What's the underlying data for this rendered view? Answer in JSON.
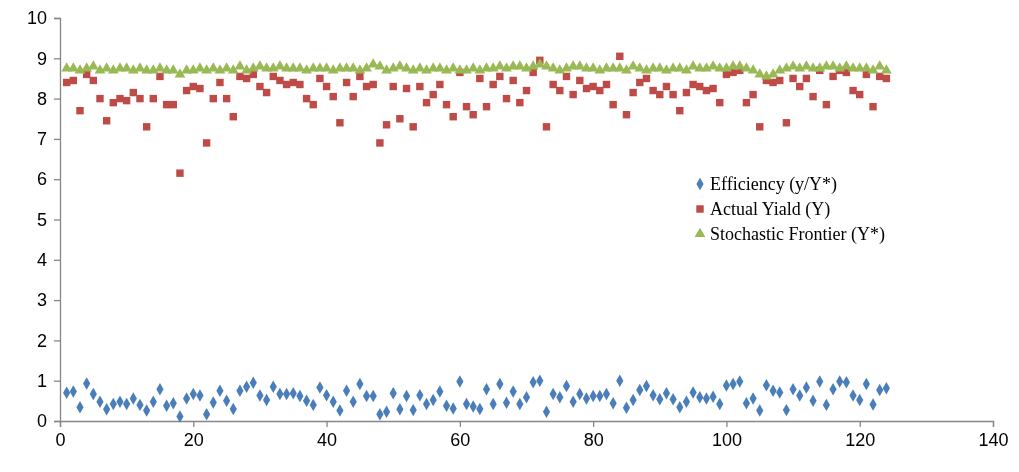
{
  "chart_data": {
    "type": "scatter",
    "x": [
      1,
      2,
      3,
      4,
      5,
      6,
      7,
      8,
      9,
      10,
      11,
      12,
      13,
      14,
      15,
      16,
      17,
      18,
      19,
      20,
      21,
      22,
      23,
      24,
      25,
      26,
      27,
      28,
      29,
      30,
      31,
      32,
      33,
      34,
      35,
      36,
      37,
      38,
      39,
      40,
      41,
      42,
      43,
      44,
      45,
      46,
      47,
      48,
      49,
      50,
      51,
      52,
      53,
      54,
      55,
      56,
      57,
      58,
      59,
      60,
      61,
      62,
      63,
      64,
      65,
      66,
      67,
      68,
      69,
      70,
      71,
      72,
      73,
      74,
      75,
      76,
      77,
      78,
      79,
      80,
      81,
      82,
      83,
      84,
      85,
      86,
      87,
      88,
      89,
      90,
      91,
      92,
      93,
      94,
      95,
      96,
      97,
      98,
      99,
      100,
      101,
      102,
      103,
      104,
      105,
      106,
      107,
      108,
      109,
      110,
      111,
      112,
      113,
      114,
      115,
      116,
      117,
      118,
      119,
      120,
      121,
      122,
      123,
      124
    ],
    "series": [
      {
        "name": "Efficiency (y/Y*)",
        "color": "#4a7ebb",
        "marker": "diamond",
        "values": [
          0.7,
          0.73,
          0.34,
          0.93,
          0.67,
          0.48,
          0.29,
          0.42,
          0.48,
          0.42,
          0.56,
          0.4,
          0.26,
          0.48,
          0.79,
          0.38,
          0.44,
          0.11,
          0.56,
          0.67,
          0.63,
          0.17,
          0.46,
          0.75,
          0.5,
          0.3,
          0.75,
          0.85,
          0.95,
          0.63,
          0.52,
          0.85,
          0.67,
          0.67,
          0.69,
          0.62,
          0.5,
          0.4,
          0.83,
          0.64,
          0.48,
          0.26,
          0.75,
          0.48,
          0.92,
          0.62,
          0.62,
          0.17,
          0.23,
          0.69,
          0.29,
          0.62,
          0.27,
          0.64,
          0.42,
          0.52,
          0.73,
          0.38,
          0.31,
          0.98,
          0.42,
          0.36,
          0.3,
          0.79,
          0.42,
          0.92,
          0.45,
          0.73,
          0.42,
          0.59,
          0.96,
          1.0,
          0.23,
          0.67,
          0.59,
          0.87,
          0.48,
          0.67,
          0.56,
          0.62,
          0.62,
          0.67,
          0.44,
          1.0,
          0.33,
          0.52,
          0.77,
          0.87,
          0.64,
          0.54,
          0.69,
          0.54,
          0.34,
          0.48,
          0.71,
          0.59,
          0.56,
          0.6,
          0.42,
          0.88,
          0.92,
          0.98,
          0.44,
          0.56,
          0.26,
          0.89,
          0.75,
          0.71,
          0.27,
          0.79,
          0.63,
          0.83,
          0.5,
          0.98,
          0.4,
          0.79,
          0.98,
          0.96,
          0.63,
          0.52,
          0.92,
          0.41,
          0.77,
          0.81
        ]
      },
      {
        "name": "Actual Yiald (Y)",
        "color": "#be4b48",
        "marker": "square",
        "values": [
          8.4,
          8.45,
          7.7,
          8.6,
          8.45,
          8.0,
          7.45,
          7.9,
          8.0,
          7.95,
          8.15,
          8.0,
          7.3,
          8.0,
          8.55,
          7.85,
          7.85,
          6.15,
          8.2,
          8.3,
          8.25,
          6.9,
          8.0,
          8.4,
          8.0,
          7.55,
          8.55,
          8.5,
          8.6,
          8.3,
          8.15,
          8.55,
          8.45,
          8.35,
          8.4,
          8.35,
          8.0,
          7.85,
          8.5,
          8.3,
          8.05,
          7.4,
          8.4,
          8.05,
          8.55,
          8.3,
          8.35,
          6.9,
          7.35,
          8.3,
          7.5,
          8.25,
          7.3,
          8.3,
          7.9,
          8.1,
          8.35,
          7.85,
          7.55,
          8.65,
          7.8,
          7.6,
          8.5,
          7.8,
          8.35,
          8.55,
          8.0,
          8.45,
          7.9,
          8.2,
          8.65,
          8.95,
          7.3,
          8.35,
          8.2,
          8.55,
          8.1,
          8.45,
          8.25,
          8.3,
          8.2,
          8.35,
          7.85,
          9.05,
          7.6,
          8.15,
          8.4,
          8.5,
          8.2,
          8.1,
          8.3,
          8.1,
          7.7,
          8.15,
          8.35,
          8.3,
          8.2,
          8.25,
          7.9,
          8.6,
          8.65,
          8.7,
          7.9,
          8.1,
          7.3,
          8.45,
          8.4,
          8.45,
          7.4,
          8.5,
          8.3,
          8.5,
          8.05,
          8.7,
          7.85,
          8.55,
          8.7,
          8.65,
          8.2,
          8.1,
          8.6,
          7.8,
          8.55,
          8.5
        ]
      },
      {
        "name": "Stochastic Frontier (Y*)",
        "color": "#98b954",
        "marker": "triangle",
        "values": [
          8.75,
          8.75,
          8.7,
          8.75,
          8.8,
          8.7,
          8.75,
          8.7,
          8.75,
          8.75,
          8.7,
          8.75,
          8.7,
          8.7,
          8.75,
          8.7,
          8.7,
          8.6,
          8.7,
          8.7,
          8.75,
          8.7,
          8.75,
          8.7,
          8.75,
          8.7,
          8.8,
          8.7,
          8.75,
          8.8,
          8.75,
          8.75,
          8.8,
          8.75,
          8.75,
          8.75,
          8.7,
          8.75,
          8.75,
          8.75,
          8.7,
          8.75,
          8.75,
          8.75,
          8.7,
          8.75,
          8.85,
          8.8,
          8.7,
          8.75,
          8.8,
          8.75,
          8.7,
          8.75,
          8.7,
          8.75,
          8.75,
          8.7,
          8.75,
          8.7,
          8.7,
          8.75,
          8.7,
          8.75,
          8.75,
          8.8,
          8.75,
          8.8,
          8.8,
          8.75,
          8.8,
          8.85,
          8.8,
          8.75,
          8.7,
          8.75,
          8.8,
          8.8,
          8.75,
          8.75,
          8.7,
          8.75,
          8.75,
          8.75,
          8.7,
          8.8,
          8.75,
          8.7,
          8.75,
          8.75,
          8.7,
          8.75,
          8.75,
          8.7,
          8.8,
          8.75,
          8.75,
          8.8,
          8.75,
          8.75,
          8.8,
          8.8,
          8.75,
          8.7,
          8.6,
          8.55,
          8.6,
          8.7,
          8.75,
          8.8,
          8.75,
          8.8,
          8.75,
          8.75,
          8.8,
          8.8,
          8.75,
          8.8,
          8.75,
          8.75,
          8.75,
          8.7,
          8.8,
          8.7
        ]
      }
    ],
    "xlim": [
      0,
      140
    ],
    "xticks": [
      0,
      20,
      40,
      60,
      80,
      100,
      120,
      140
    ],
    "ylim": [
      0,
      10
    ],
    "yticks": [
      0,
      1,
      2,
      3,
      4,
      5,
      6,
      7,
      8,
      9,
      10
    ],
    "grid": false,
    "legend": "right"
  }
}
